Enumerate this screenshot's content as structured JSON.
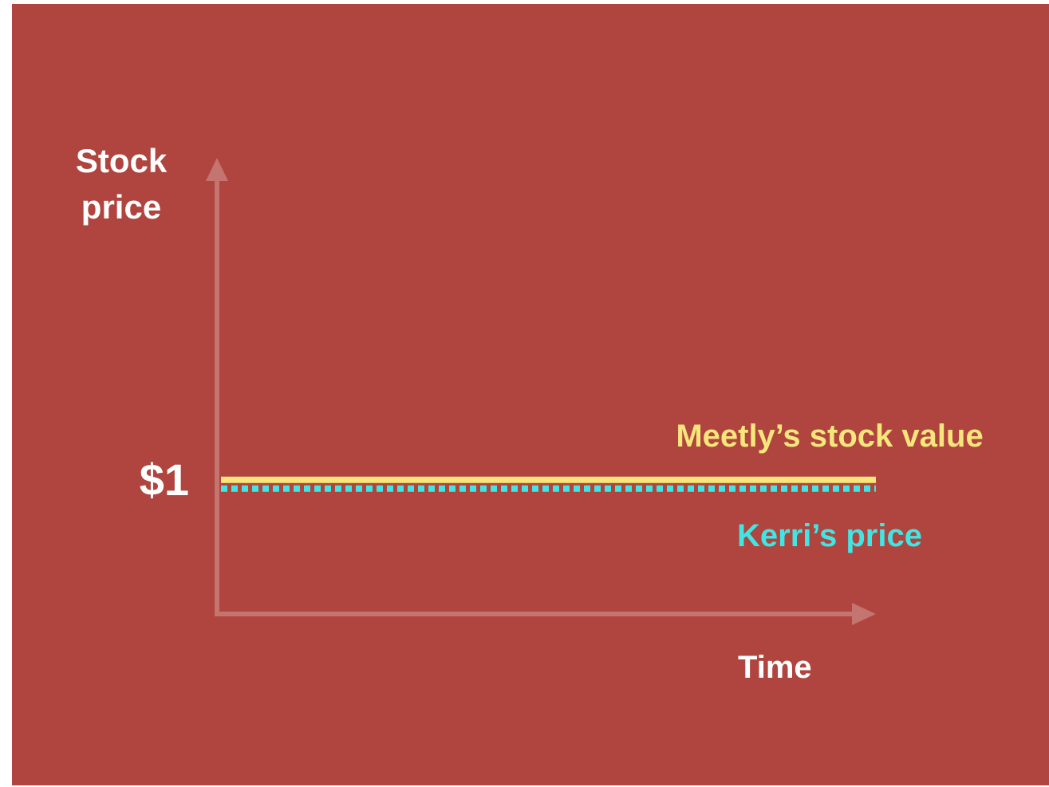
{
  "chart_data": {
    "type": "line",
    "y_label": "Stock price",
    "x_label": "Time",
    "categories": [
      null,
      null
    ],
    "series": [
      {
        "name": "Meetly’s stock value",
        "color": "#f6e67c",
        "style": "solid",
        "values": [
          1,
          1
        ]
      },
      {
        "name": "Kerri’s price",
        "color": "#3fe6e4",
        "style": "dotted",
        "values": [
          1,
          1
        ]
      }
    ],
    "ylim": [
      0,
      3.4
    ],
    "yticks": [
      {
        "value": 1,
        "label": "$1"
      }
    ],
    "grid": false
  }
}
